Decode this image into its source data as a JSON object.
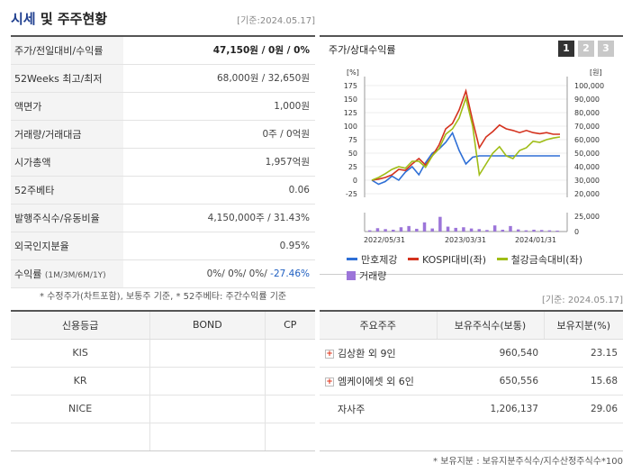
{
  "header": {
    "title_part1": "시세",
    "title_part2": " 및 주주현황",
    "date": "[기준:2024.05.17]"
  },
  "info_rows": [
    {
      "label": "주가/전일대비/수익률",
      "value": "47,150원 / 0원 / 0%"
    },
    {
      "label": "52Weeks 최고/최저",
      "value": "68,000원 / 32,650원"
    },
    {
      "label": "액면가",
      "value": "1,000원"
    },
    {
      "label": "거래량/거래대금",
      "value": "0주 / 0억원"
    },
    {
      "label": "시가총액",
      "value": "1,957억원"
    },
    {
      "label": "52주베타",
      "value": "0.06"
    },
    {
      "label": "발행주식수/유동비율",
      "value": "4,150,000주 / 31.43%"
    },
    {
      "label": "외국인지분율",
      "value": "0.95%"
    }
  ],
  "return_row": {
    "label": "수익률",
    "label_sub": "(1M/3M/6M/1Y)",
    "value_pos": "0%/ 0%/ 0%/ ",
    "value_neg": "-27.46%"
  },
  "note_left": "* 수정주가(차트포함), 보통주 기준, * 52주베타: 주간수익률 기준",
  "chart_panel": {
    "title": "주가/상대수익률",
    "tabs": [
      "1",
      "2",
      "3"
    ]
  },
  "chart_data": {
    "type": "line",
    "left_axis_unit": "[%]",
    "right_axis_unit": "[원]",
    "left_ticks": [
      "175",
      "150",
      "125",
      "100",
      "75",
      "50",
      "25",
      "0",
      "-25"
    ],
    "right_ticks": [
      "100,000",
      "90,000",
      "80,000",
      "70,000",
      "60,000",
      "50,000",
      "40,000",
      "30,000",
      "20,000"
    ],
    "volume_ticks": [
      "25,000",
      "0"
    ],
    "x_labels": [
      "2022/05/31",
      "2023/03/31",
      "2024/01/31"
    ],
    "ylim_left": [
      -25,
      175
    ],
    "ylim_right": [
      20000,
      100000
    ],
    "series": [
      {
        "name": "만호제강",
        "axis": "right",
        "color": "#2e6fd6",
        "values": [
          30000,
          27000,
          29000,
          33000,
          30000,
          36000,
          40000,
          34000,
          43000,
          50000,
          53000,
          58000,
          65000,
          52000,
          42000,
          47000,
          48000,
          48000,
          48000,
          48000,
          48000,
          48000,
          48000,
          48000,
          48000,
          48000,
          48000,
          48000,
          48000
        ]
      },
      {
        "name": "KOSPI대비(좌)",
        "axis": "left",
        "color": "#d4321e",
        "values": [
          0,
          2,
          5,
          10,
          20,
          18,
          30,
          40,
          28,
          45,
          65,
          95,
          105,
          130,
          165,
          110,
          60,
          80,
          90,
          102,
          95,
          92,
          88,
          92,
          88,
          86,
          88,
          85,
          85
        ]
      },
      {
        "name": "철강금속대비(좌)",
        "axis": "left",
        "color": "#9fbd16",
        "values": [
          0,
          5,
          12,
          20,
          25,
          22,
          35,
          35,
          24,
          45,
          58,
          85,
          95,
          115,
          152,
          100,
          10,
          30,
          50,
          62,
          45,
          40,
          55,
          60,
          72,
          70,
          75,
          78,
          80
        ]
      }
    ],
    "volume": {
      "name": "거래량",
      "color": "#9c75d9",
      "values": [
        2000,
        5500,
        4000,
        3000,
        7000,
        9000,
        4500,
        15000,
        5000,
        24000,
        8000,
        6000,
        7000,
        5000,
        4000,
        2500,
        10000,
        3000,
        9000,
        3500,
        2000,
        3000,
        2500,
        2000,
        1500
      ]
    }
  },
  "legend": {
    "items": [
      "만호제강",
      "KOSPI대비(좌)",
      "철강금속대비(좌)",
      "거래량"
    ]
  },
  "right_date": "[기준: 2024.05.17]",
  "credit": {
    "headers": [
      "신용등급",
      "BOND",
      "CP"
    ],
    "rows": [
      {
        "agency": "KIS",
        "bond": "",
        "cp": ""
      },
      {
        "agency": "KR",
        "bond": "",
        "cp": ""
      },
      {
        "agency": "NICE",
        "bond": "",
        "cp": ""
      },
      {
        "agency": "",
        "bond": "",
        "cp": ""
      }
    ]
  },
  "holders": {
    "headers": [
      "주요주주",
      "보유주식수(보통)",
      "보유지분(%)"
    ],
    "rows": [
      {
        "name": "김상환 외 9인",
        "shares": "960,540",
        "pct": "23.15",
        "expandable": true
      },
      {
        "name": "엠케이에셋 외 6인",
        "shares": "650,556",
        "pct": "15.68",
        "expandable": true
      },
      {
        "name": "자사주",
        "shares": "1,206,137",
        "pct": "29.06",
        "expandable": false
      },
      {
        "name": "",
        "shares": "",
        "pct": "",
        "expandable": false
      }
    ]
  },
  "note_right": "* 보유지분 : 보유지분주식수/지수산정주식수*100"
}
